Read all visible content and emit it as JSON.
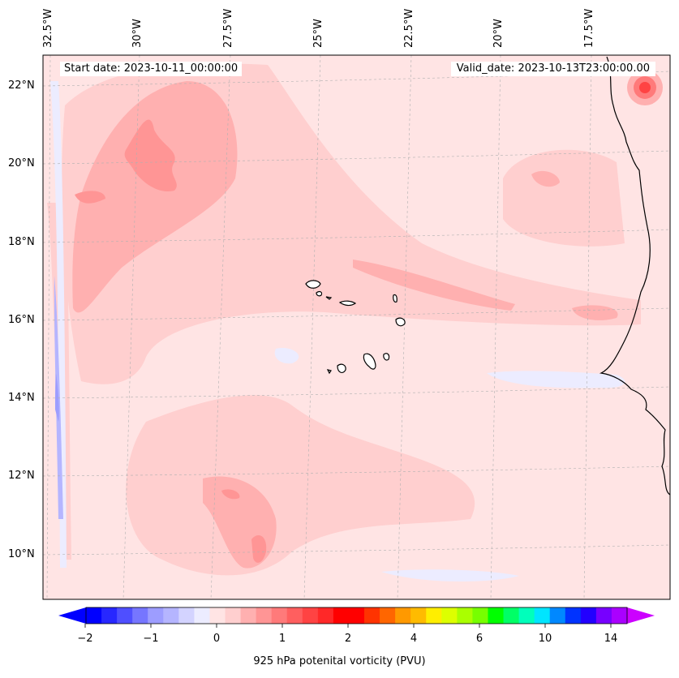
{
  "map": {
    "lon_labels": [
      "32.5°W",
      "30°W",
      "27.5°W",
      "25°W",
      "22.5°W",
      "20°W",
      "17.5°W"
    ],
    "lat_labels": [
      "22°N",
      "20°N",
      "18°N",
      "16°N",
      "14°N",
      "12°N",
      "10°N"
    ],
    "start_date_text": "Start date: 2023-10-11_00:00:00",
    "valid_date_text": "Valid_date: 2023-10-13T23:00:00.00"
  },
  "colorbar": {
    "tick_labels": [
      "−2",
      "−1",
      "0",
      "1",
      "2",
      "4",
      "6",
      "10",
      "14"
    ],
    "label": "925 hPa potenital vorticity (PVU)",
    "colors": [
      "#0000ff",
      "#2727ff",
      "#4f4fff",
      "#7676ff",
      "#9d9dff",
      "#b5b5ff",
      "#d3d3ff",
      "#ececff",
      "#ffe4e4",
      "#ffcfcf",
      "#ffb0b0",
      "#ff9595",
      "#ff7a7a",
      "#ff5f5f",
      "#ff4343",
      "#ff2828",
      "#ff0000",
      "#ff0000",
      "#ff3300",
      "#ff6600",
      "#ff9900",
      "#ffbb00",
      "#ffee00",
      "#ddff00",
      "#aaff00",
      "#77ff00",
      "#00ff00",
      "#00ff66",
      "#00ffbb",
      "#00e5ff",
      "#0088ff",
      "#0033ff",
      "#2200ff",
      "#7700ff",
      "#aa00ff"
    ],
    "extend_low": "#0000ff",
    "extend_high": "#cc00ff"
  }
}
